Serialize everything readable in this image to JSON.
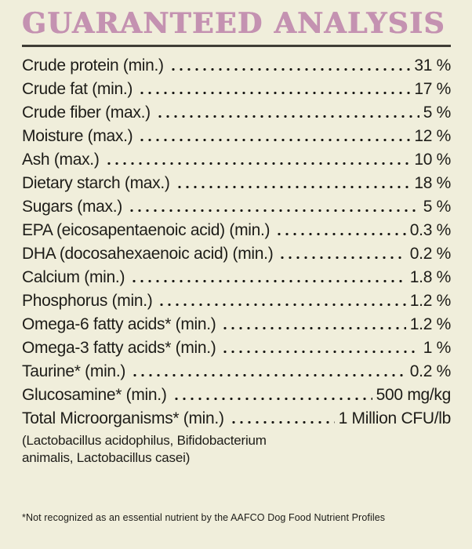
{
  "title": "GUARANTEED ANALYSIS",
  "colors": {
    "background": "#f0eedb",
    "title_text": "#c492b1",
    "body_text": "#1d1c18",
    "divider": "#3f3d35"
  },
  "table": {
    "rows": [
      {
        "label": "Crude protein (min.)",
        "value": "31 %"
      },
      {
        "label": "Crude fat (min.)",
        "value": "17 %"
      },
      {
        "label": "Crude fiber (max.)",
        "value": "5 %"
      },
      {
        "label": "Moisture (max.)",
        "value": "12 %"
      },
      {
        "label": "Ash (max.)",
        "value": "10 %"
      },
      {
        "label": "Dietary starch (max.)",
        "value": "18 %"
      },
      {
        "label": "Sugars (max.)",
        "value": "5 %"
      },
      {
        "label": "EPA (eicosapentaenoic acid) (min.)",
        "value": "0.3 %"
      },
      {
        "label": "DHA (docosahexaenoic acid) (min.)",
        "value": "0.2 %"
      },
      {
        "label": "Calcium (min.)",
        "value": "1.8 %"
      },
      {
        "label": "Phosphorus (min.)",
        "value": "1.2 %"
      },
      {
        "label": "Omega-6 fatty acids* (min.)",
        "value": "1.2 %"
      },
      {
        "label": "Omega-3 fatty acids* (min.)",
        "value": "1 %"
      },
      {
        "label": "Taurine* (min.)",
        "value": "0.2 %"
      },
      {
        "label": "Glucosamine* (min.)",
        "value": "500 mg/kg"
      },
      {
        "label": "Total Microorganisms* (min.)",
        "value": "1 Million CFU/lb"
      }
    ],
    "subnote": "(Lactobacillus acidophilus, Bifidobacterium animalis, Lactobacillus casei)"
  },
  "footnote": "*Not recognized as an essential nutrient by the AAFCO Dog Food Nutrient Profiles"
}
